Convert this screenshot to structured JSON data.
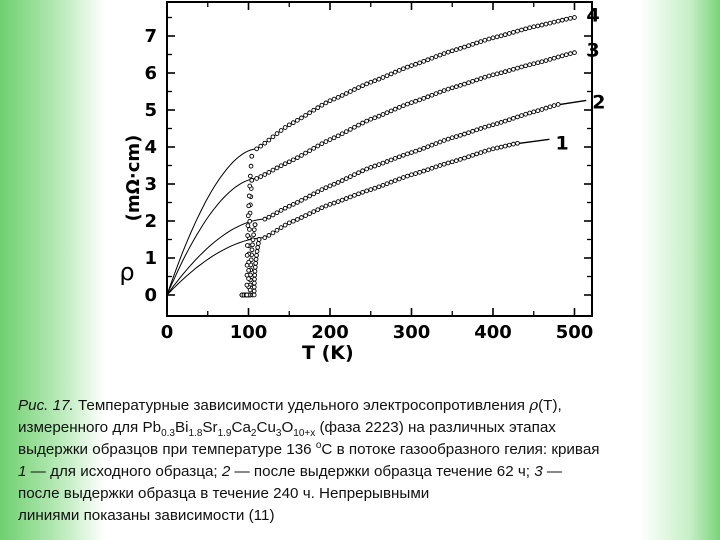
{
  "chart_data": {
    "type": "scatter",
    "xlabel": "T (K)",
    "ylabel_symbol": "ρ",
    "ylabel_units": "(mΩ·cm)",
    "xlim": [
      0,
      500
    ],
    "ylim": [
      0,
      8
    ],
    "x_ticks": [
      0,
      100,
      200,
      300,
      400,
      500
    ],
    "y_ticks": [
      0,
      1,
      2,
      3,
      4,
      5,
      6,
      7
    ],
    "grid": false,
    "legend": "none",
    "series": [
      {
        "name": "1",
        "tc": 107,
        "transition_top_T": 113,
        "transition_top_rho": 1.5,
        "points": [
          [
            120,
            1.55
          ],
          [
            150,
            1.95
          ],
          [
            200,
            2.45
          ],
          [
            250,
            2.85
          ],
          [
            300,
            3.25
          ],
          [
            350,
            3.6
          ],
          [
            400,
            3.95
          ],
          [
            430,
            4.1
          ]
        ]
      },
      {
        "name": "2",
        "tc": 102,
        "transition_top_T": 108,
        "transition_top_rho": 1.9,
        "points": [
          [
            120,
            2.05
          ],
          [
            150,
            2.4
          ],
          [
            200,
            2.95
          ],
          [
            250,
            3.45
          ],
          [
            300,
            3.85
          ],
          [
            350,
            4.25
          ],
          [
            400,
            4.6
          ],
          [
            450,
            4.95
          ],
          [
            480,
            5.15
          ]
        ]
      },
      {
        "name": "3",
        "tc": 100,
        "transition_top_T": 104,
        "transition_top_rho": 3.1,
        "points": [
          [
            110,
            3.15
          ],
          [
            150,
            3.6
          ],
          [
            200,
            4.2
          ],
          [
            250,
            4.75
          ],
          [
            300,
            5.2
          ],
          [
            350,
            5.6
          ],
          [
            400,
            5.95
          ],
          [
            450,
            6.25
          ],
          [
            500,
            6.55
          ]
        ]
      },
      {
        "name": "4",
        "tc": 98,
        "transition_top_T": 104,
        "transition_top_rho": 3.75,
        "points": [
          [
            110,
            3.95
          ],
          [
            150,
            4.6
          ],
          [
            200,
            5.25
          ],
          [
            250,
            5.75
          ],
          [
            300,
            6.2
          ],
          [
            350,
            6.6
          ],
          [
            400,
            6.95
          ],
          [
            450,
            7.25
          ],
          [
            500,
            7.5
          ]
        ]
      }
    ],
    "fit_lines": [
      {
        "series": "1",
        "points": [
          [
            0,
            0.0
          ],
          [
            120,
            1.55
          ]
        ]
      },
      {
        "series": "2",
        "points": [
          [
            0,
            0.0
          ],
          [
            120,
            2.05
          ]
        ]
      },
      {
        "series": "3",
        "points": [
          [
            0,
            0.0
          ],
          [
            110,
            3.15
          ]
        ]
      },
      {
        "series": "4",
        "points": [
          [
            0,
            0.0
          ],
          [
            110,
            3.95
          ]
        ]
      }
    ]
  },
  "caption": {
    "fig": "Рис. 17.",
    "t1": " Температурные зависимости удельного электросопротивления ",
    "rho": "ρ",
    "t2": "(T),",
    "t3": "измеренного для Pb",
    "s1": "0.3",
    "t4": "Bi",
    "s2": "1.8",
    "t5": "Sr",
    "s3": "1.9",
    "t6": "Ca",
    "s4": "2",
    "t7": "Cu",
    "s5": "3",
    "t8": "O",
    "s6": "10+x",
    "t9": " (фаза 2223) на различных этапах",
    "t10": "выдержки образцов при температуре 136 ",
    "sup1": "o",
    "t11": "C в потоке газообразного гелия: кривая",
    "n1": "1",
    "t12": " — для исходного образца; ",
    "n2": "2",
    "t13": " — после выдержки образца течение 62 ч; ",
    "n3": "3",
    "t14": " —",
    "t15": "после выдержки образца   в   течение   240  ч.   Непрерывными",
    "t16": "линиями показаны зависимости (11)"
  }
}
